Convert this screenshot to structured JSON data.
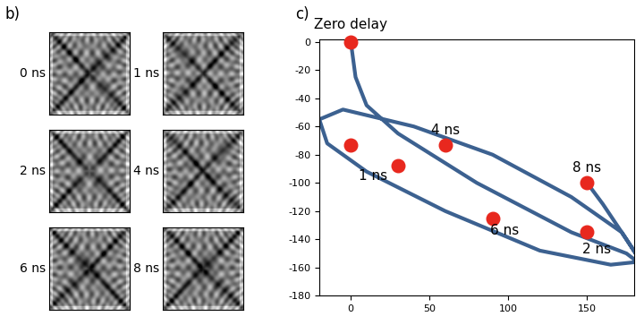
{
  "panel_b": {
    "label": "b)",
    "images": [
      "0 ns",
      "1 ns",
      "2 ns",
      "4 ns",
      "6 ns",
      "8 ns"
    ]
  },
  "chart_data": {
    "type": "scatter",
    "label": "c)",
    "x": [
      0,
      0,
      30,
      60,
      90,
      150,
      150
    ],
    "values": [
      0,
      -73,
      -88,
      -73,
      -125,
      -135,
      -100
    ],
    "value_labels": [
      "Zero delay",
      null,
      "1 ns",
      "4 ns",
      "6 ns",
      "2 ns",
      "8 ns"
    ],
    "color": "#e8281e",
    "marker": "o",
    "curve": {
      "type": "line",
      "color": "#3c6190",
      "x": [
        0,
        3,
        10,
        30,
        80,
        140,
        175,
        182,
        165,
        120,
        60,
        10,
        -15,
        -20,
        -5,
        40,
        90,
        140,
        172,
        182,
        175,
        160,
        150
      ],
      "values": [
        0,
        -25,
        -45,
        -65,
        -100,
        -135,
        -150,
        -156,
        -158,
        -148,
        -120,
        -92,
        -72,
        -55,
        -48,
        -60,
        -80,
        -110,
        -135,
        -152,
        -140,
        -115,
        -100
      ]
    },
    "xlim": [
      -20,
      180
    ],
    "ylim": [
      -180,
      2
    ],
    "xticks": [
      0,
      50,
      100,
      150
    ],
    "yticks": [
      -180,
      -160,
      -140,
      -120,
      -100,
      -80,
      -60,
      -40,
      -20,
      0
    ]
  }
}
